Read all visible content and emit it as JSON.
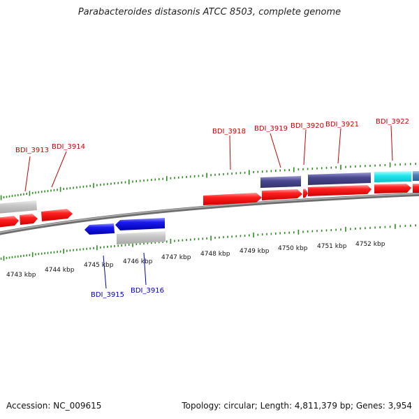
{
  "title": "Parabacteroides distasonis ATCC 8503, complete genome",
  "accession": "Accession: NC_009615",
  "summary": "Topology: circular; Length: 4,811,379 bp; Genes: 3,954",
  "colors": {
    "backbone": "#8a8a8a",
    "tick": "#2e8b22",
    "forward_cds": "#ff2020",
    "reverse_cds": "#1a1aee",
    "forward_label": "#cc0000",
    "reverse_label": "#0000bb",
    "gray_feature": "#c4c4c4",
    "navy_feature": "#4a4890",
    "cyan_feature": "#22e8ee",
    "steel_feature": "#4a7fb8"
  },
  "scale_labels": [
    {
      "text": "4743 kbp"
    },
    {
      "text": "4744 kbp"
    },
    {
      "text": "4745 kbp"
    },
    {
      "text": "4746 kbp"
    },
    {
      "text": "4747 kbp"
    },
    {
      "text": "4748 kbp"
    },
    {
      "text": "4749 kbp"
    },
    {
      "text": "4750 kbp"
    },
    {
      "text": "4751 kbp"
    },
    {
      "text": "4752 kbp"
    }
  ],
  "gene_labels": [
    {
      "text": "BDI_3913",
      "strand": "forward"
    },
    {
      "text": "BDI_3914",
      "strand": "forward"
    },
    {
      "text": "BDI_3915",
      "strand": "reverse"
    },
    {
      "text": "BDI_3916",
      "strand": "reverse"
    },
    {
      "text": "BDI_3918",
      "strand": "forward"
    },
    {
      "text": "BDI_3919",
      "strand": "forward"
    },
    {
      "text": "BDI_3920",
      "strand": "forward"
    },
    {
      "text": "BDI_3921",
      "strand": "forward"
    },
    {
      "text": "BDI_3922",
      "strand": "forward"
    }
  ]
}
